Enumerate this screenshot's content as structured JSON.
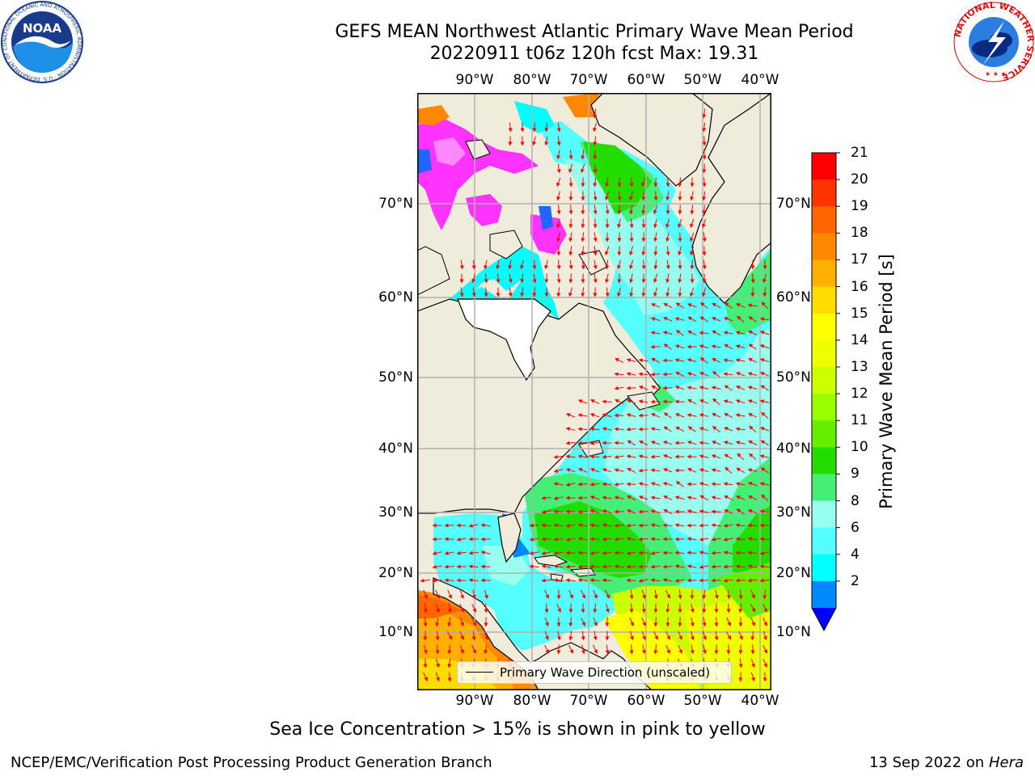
{
  "title": {
    "line1": "GEFS MEAN Northwest Atlantic Primary Wave Mean Period",
    "line2": "20220911 t06z 120h fcst   Max: 19.31"
  },
  "map": {
    "lon_ticks": [
      "90°W",
      "80°W",
      "70°W",
      "60°W",
      "50°W",
      "40°W"
    ],
    "lat_ticks": [
      "70°N",
      "60°N",
      "50°N",
      "40°N",
      "30°N",
      "20°N",
      "10°N"
    ],
    "legend_label": "Primary Wave Direction (unscaled)",
    "land_color": "#efecdc",
    "arrow_color": "#ff0000"
  },
  "colorbar": {
    "label": "Primary Wave Mean Period [s]",
    "ticks": [
      "21",
      "20",
      "19",
      "18",
      "17",
      "16",
      "15",
      "14",
      "13",
      "12",
      "11",
      "10",
      "9",
      "8",
      "6",
      "4",
      "2"
    ],
    "colors_top_down": [
      "#ff0000",
      "#ff3300",
      "#ff6600",
      "#ff8800",
      "#ffb000",
      "#ffdd00",
      "#ffff00",
      "#eeff00",
      "#ccff00",
      "#99ff00",
      "#66ee00",
      "#22dd00",
      "#44ee77",
      "#99ffee",
      "#55ffff",
      "#00ffff",
      "#0088ff"
    ],
    "under_color": "#0000ff"
  },
  "caption": "Sea Ice Concentration > 15% is shown in pink to yellow",
  "footer": {
    "left": "NCEP/EMC/Verification Post Processing Product Generation Branch",
    "right_date": "13 Sep 2022 on",
    "right_machine": "Hera"
  },
  "logos": {
    "noaa_text": "NOAA",
    "noaa_ring": "NATIONAL OCEANIC AND ATMOSPHERIC ADMINISTRATION · U.S. DEPARTMENT OF COMMERCE",
    "nws_ring": "NATIONAL WEATHER SERVICE"
  }
}
